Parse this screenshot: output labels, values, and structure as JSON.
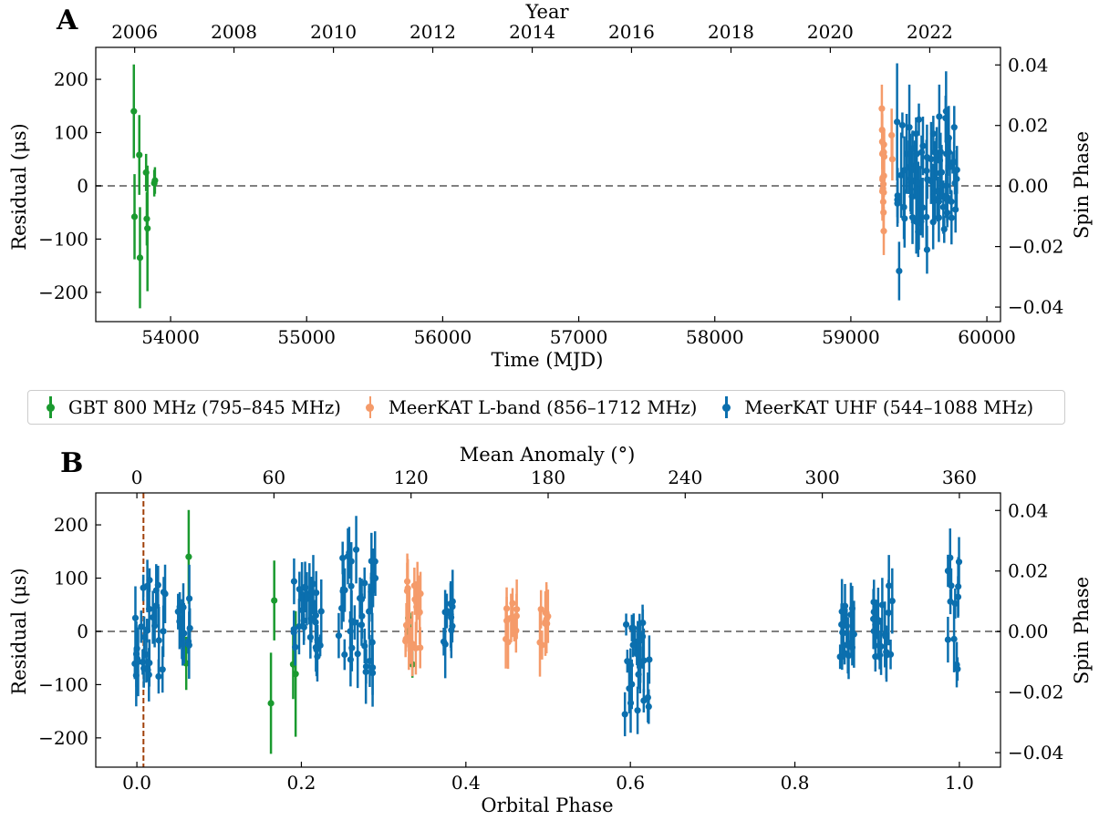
{
  "legend": {
    "items": [
      {
        "label": "GBT 800 MHz (795–845 MHz)",
        "color": "#1a9a2f"
      },
      {
        "label": "MeerKAT L-band (856–1712 MHz)",
        "color": "#f59b6a"
      },
      {
        "label": "MeerKAT UHF (544–1088 MHz)",
        "color": "#0b6fae"
      }
    ]
  },
  "chart_data": [
    {
      "type": "scatter",
      "panel_label": "A",
      "xlabel": "Time (MJD)",
      "ylabel": "Residual (μs)",
      "x2label": "Year",
      "y2label": "Spin Phase",
      "xlim": [
        53450,
        60100
      ],
      "ylim": [
        -255,
        260
      ],
      "y2lim": [
        -0.0448,
        0.0458
      ],
      "xticks": [
        54000,
        55000,
        56000,
        57000,
        58000,
        59000,
        60000
      ],
      "yticks": [
        -200,
        -100,
        0,
        100,
        200
      ],
      "x2ticks": [
        {
          "label": "2006",
          "mjd": 53736
        },
        {
          "label": "2008",
          "mjd": 54466
        },
        {
          "label": "2010",
          "mjd": 55197
        },
        {
          "label": "2012",
          "mjd": 55927
        },
        {
          "label": "2014",
          "mjd": 56658
        },
        {
          "label": "2016",
          "mjd": 57388
        },
        {
          "label": "2018",
          "mjd": 58119
        },
        {
          "label": "2020",
          "mjd": 58849
        },
        {
          "label": "2022",
          "mjd": 59580
        }
      ],
      "y2ticks": [
        -0.04,
        -0.02,
        0.0,
        0.02,
        0.04
      ],
      "zero_line": true,
      "series": [
        {
          "name": "GBT 800 MHz (795–845 MHz)",
          "color": "#1a9a2f",
          "x": [
            53730,
            53735,
            53770,
            53775,
            53820,
            53825,
            53830,
            53880,
            53885
          ],
          "y": [
            140,
            -58,
            58,
            -135,
            25,
            -62,
            -80,
            5,
            10
          ],
          "err": [
            88,
            80,
            75,
            95,
            35,
            50,
            118,
            25,
            25
          ]
        },
        {
          "name": "MeerKAT L-band (856–1712 MHz)",
          "color": "#f59b6a",
          "x": [
            59228,
            59230,
            59232,
            59234,
            59236,
            59238,
            59240,
            59242,
            59300,
            59305
          ],
          "y": [
            145,
            105,
            60,
            15,
            -5,
            -30,
            -50,
            -85,
            95,
            50
          ],
          "err": [
            45,
            40,
            40,
            30,
            30,
            35,
            40,
            45,
            50,
            40
          ],
          "band_x": [
            59228,
            59245
          ]
        },
        {
          "name": "MeerKAT UHF (544–1088 MHz)",
          "color": "#0b6fae",
          "x": [
            59340,
            59355,
            59370,
            59390,
            59410,
            59430,
            59450,
            59470,
            59500,
            59530,
            59560,
            59590,
            59620,
            59650,
            59680,
            59700,
            59720,
            59740,
            59760,
            59780
          ],
          "y": [
            120,
            -160,
            20,
            -40,
            60,
            110,
            -20,
            30,
            -70,
            75,
            -120,
            50,
            -10,
            130,
            -40,
            140,
            90,
            -60,
            110,
            30
          ],
          "err": [
            110,
            55,
            80,
            60,
            75,
            80,
            50,
            55,
            50,
            55,
            45,
            70,
            60,
            60,
            50,
            75,
            60,
            50,
            40,
            45
          ],
          "cluster_x": [
            59340,
            59790
          ]
        }
      ]
    },
    {
      "type": "scatter",
      "panel_label": "B",
      "xlabel": "Orbital Phase",
      "ylabel": "Residual (μs)",
      "x2label": "Mean Anomaly (°)",
      "y2label": "Spin Phase",
      "xlim": [
        -0.05,
        1.05
      ],
      "ylim": [
        -255,
        260
      ],
      "y2lim": [
        -0.0448,
        0.0458
      ],
      "xticks": [
        0.0,
        0.2,
        0.4,
        0.6,
        0.8,
        1.0
      ],
      "yticks": [
        -200,
        -100,
        0,
        100,
        200
      ],
      "x2ticks": [
        0,
        60,
        120,
        180,
        240,
        300,
        360
      ],
      "y2ticks": [
        -0.04,
        -0.02,
        0.0,
        0.02,
        0.04
      ],
      "zero_line": true,
      "vline_x": 0.008,
      "vline_color": "#a0400a",
      "series": [
        {
          "name": "GBT 800 MHz (795–845 MHz)",
          "color": "#1a9a2f",
          "x": [
            0.06,
            0.063,
            0.163,
            0.167,
            0.19,
            0.193,
            0.33,
            0.332,
            0.335
          ],
          "y": [
            -60,
            140,
            -135,
            58,
            -62,
            -80,
            25,
            5,
            -62
          ],
          "err": [
            50,
            88,
            95,
            75,
            65,
            118,
            35,
            30,
            25
          ]
        },
        {
          "name": "MeerKAT L-band (856–1712 MHz)",
          "color": "#f59b6a",
          "clusters": [
            {
              "x": [
                0.322,
                0.345
              ],
              "y": [
                -80,
                145
              ]
            },
            {
              "x": [
                0.448,
                0.462
              ],
              "y": [
                -75,
                97
              ]
            },
            {
              "x": [
                0.49,
                0.5
              ],
              "y": [
                -60,
                90
              ]
            }
          ]
        },
        {
          "name": "MeerKAT UHF (544–1088 MHz)",
          "color": "#0b6fae",
          "clusters": [
            {
              "x": [
                -0.003,
                0.035
              ],
              "y": [
                -155,
                180
              ]
            },
            {
              "x": [
                0.05,
                0.065
              ],
              "y": [
                -90,
                105
              ]
            },
            {
              "x": [
                0.19,
                0.225
              ],
              "y": [
                -100,
                150
              ]
            },
            {
              "x": [
                0.245,
                0.29
              ],
              "y": [
                -160,
                235
              ]
            },
            {
              "x": [
                0.372,
                0.385
              ],
              "y": [
                -60,
                105
              ]
            },
            {
              "x": [
                0.593,
                0.625
              ],
              "y": [
                -220,
                100
              ]
            },
            {
              "x": [
                0.855,
                0.875
              ],
              "y": [
                -85,
                95
              ]
            },
            {
              "x": [
                0.895,
                0.92
              ],
              "y": [
                -135,
                150
              ]
            },
            {
              "x": [
                0.985,
                1.0
              ],
              "y": [
                -145,
                210
              ]
            }
          ]
        }
      ]
    }
  ]
}
